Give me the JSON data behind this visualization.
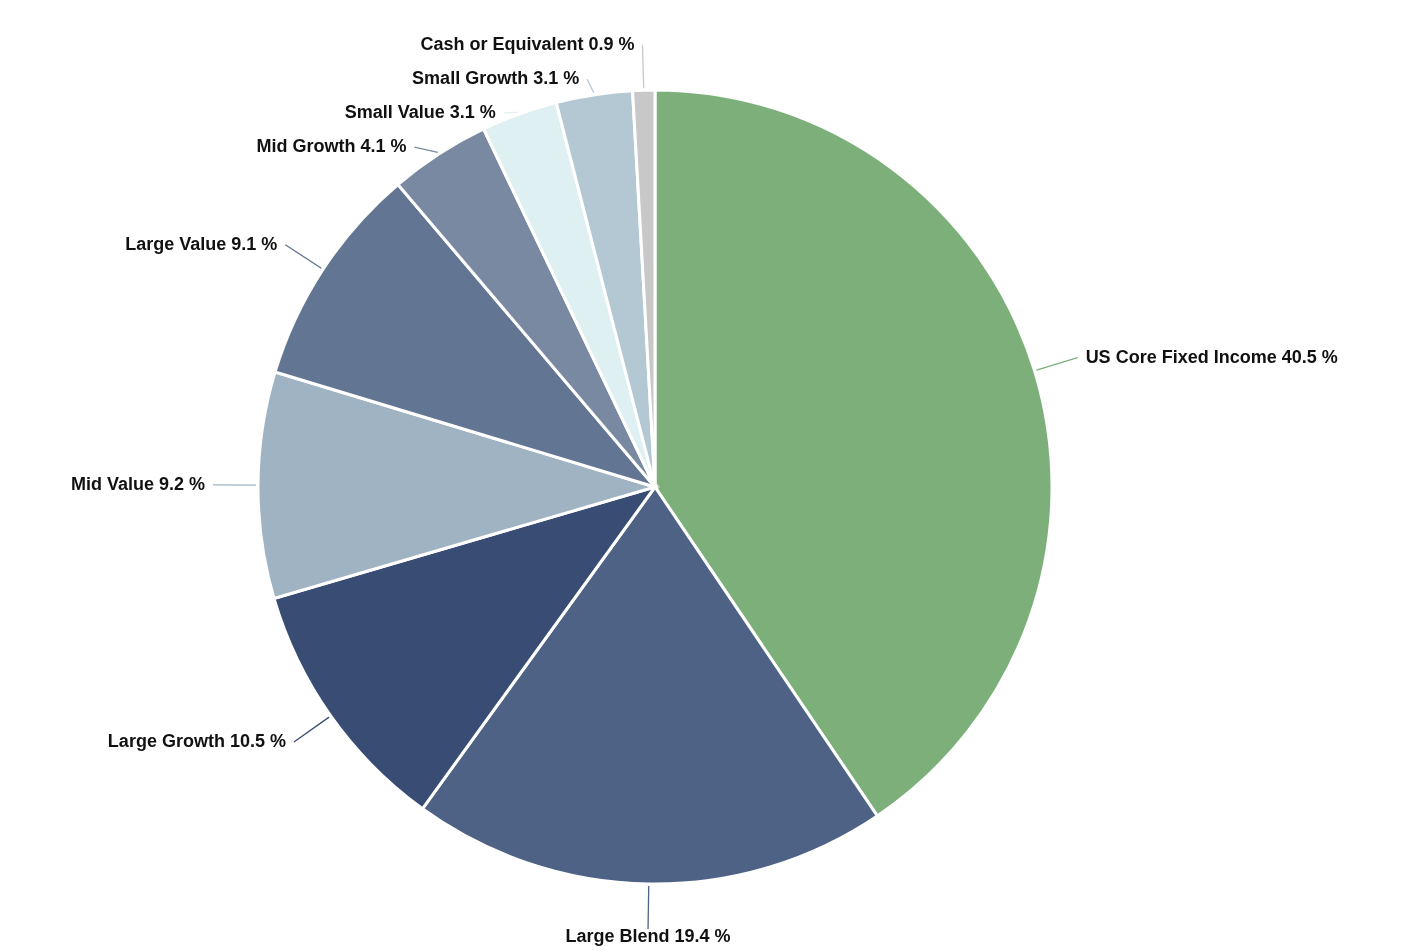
{
  "chart_data": {
    "type": "pie",
    "categories": [
      "US Core Fixed Income",
      "Large Blend",
      "Large Growth",
      "Mid Value",
      "Large Value",
      "Mid Growth",
      "Small Value",
      "Small Growth",
      "Cash or Equivalent"
    ],
    "values": [
      40.5,
      19.4,
      10.5,
      9.2,
      9.1,
      4.1,
      3.1,
      3.1,
      0.9
    ],
    "colors": [
      "#7daf7a",
      "#4e6285",
      "#394d74",
      "#a0b3c2",
      "#627693",
      "#7889a1",
      "#dff0f3",
      "#b4c8d4",
      "#c8c8c8"
    ],
    "value_labels": [
      "40.5 %",
      "19.4 %",
      "10.5 %",
      "9.2 %",
      "9.1 %",
      "4.1 %",
      "3.1 %",
      "3.1 %",
      "0.9 %"
    ]
  }
}
